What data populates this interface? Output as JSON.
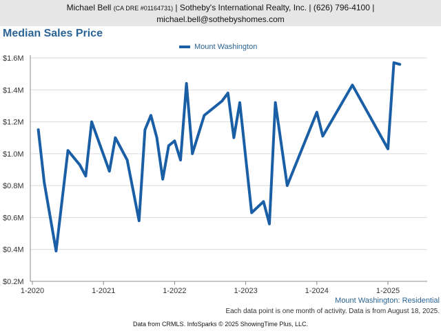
{
  "header": {
    "line1_name": "Michael Bell",
    "line1_license": "(CA DRE #01164731)",
    "line1_rest": "| Sotheby's International Realty, Inc. | (626) 796-4100 |",
    "line2": "michael.bell@sothebyshomes.com"
  },
  "caption": {
    "series_label": "Mount Washington: Residential",
    "note": "Each data point is one month of activity. Data is from August 18, 2025."
  },
  "footer": {
    "text": "Data from CRMLS. InfoSparks © 2025 ShowingTime Plus, LLC."
  },
  "colors": {
    "line": "#1a5fa6",
    "title": "#2a6496"
  },
  "chart_data": {
    "type": "line",
    "title": "Median Sales Price",
    "legend_position": "top-center",
    "grid": true,
    "ylim": [
      0.2,
      1.6
    ],
    "y_ticks": [
      {
        "value": 0.2,
        "label": "$0.2M"
      },
      {
        "value": 0.4,
        "label": "$0.4M"
      },
      {
        "value": 0.6,
        "label": "$0.6M"
      },
      {
        "value": 0.8,
        "label": "$0.8M"
      },
      {
        "value": 1.0,
        "label": "$1.0M"
      },
      {
        "value": 1.2,
        "label": "$1.2M"
      },
      {
        "value": 1.4,
        "label": "$1.4M"
      },
      {
        "value": 1.6,
        "label": "$1.6M"
      }
    ],
    "x_ticks": [
      "1-2020",
      "1-2021",
      "1-2022",
      "1-2023",
      "1-2024",
      "1-2025"
    ],
    "series": [
      {
        "name": "Mount Washington",
        "points": [
          {
            "x": "2020-02",
            "y": 1.15
          },
          {
            "x": "2020-03",
            "y": 0.82
          },
          {
            "x": "2020-05",
            "y": 0.39
          },
          {
            "x": "2020-07",
            "y": 1.02
          },
          {
            "x": "2020-09",
            "y": 0.93
          },
          {
            "x": "2020-10",
            "y": 0.86
          },
          {
            "x": "2020-11",
            "y": 1.2
          },
          {
            "x": "2021-02",
            "y": 0.89
          },
          {
            "x": "2021-03",
            "y": 1.1
          },
          {
            "x": "2021-05",
            "y": 0.96
          },
          {
            "x": "2021-07",
            "y": 0.58
          },
          {
            "x": "2021-08",
            "y": 1.15
          },
          {
            "x": "2021-09",
            "y": 1.24
          },
          {
            "x": "2021-10",
            "y": 1.1
          },
          {
            "x": "2021-11",
            "y": 0.84
          },
          {
            "x": "2021-12",
            "y": 1.05
          },
          {
            "x": "2022-01",
            "y": 1.08
          },
          {
            "x": "2022-02",
            "y": 0.96
          },
          {
            "x": "2022-03",
            "y": 1.44
          },
          {
            "x": "2022-04",
            "y": 1.0
          },
          {
            "x": "2022-06",
            "y": 1.24
          },
          {
            "x": "2022-09",
            "y": 1.33
          },
          {
            "x": "2022-10",
            "y": 1.38
          },
          {
            "x": "2022-11",
            "y": 1.1
          },
          {
            "x": "2022-12",
            "y": 1.32
          },
          {
            "x": "2023-02",
            "y": 0.63
          },
          {
            "x": "2023-04",
            "y": 0.7
          },
          {
            "x": "2023-05",
            "y": 0.56
          },
          {
            "x": "2023-06",
            "y": 1.32
          },
          {
            "x": "2023-08",
            "y": 0.8
          },
          {
            "x": "2024-01",
            "y": 1.26
          },
          {
            "x": "2024-02",
            "y": 1.11
          },
          {
            "x": "2024-07",
            "y": 1.43
          },
          {
            "x": "2025-01",
            "y": 1.03
          },
          {
            "x": "2025-02",
            "y": 1.57
          },
          {
            "x": "2025-03",
            "y": 1.56
          }
        ]
      }
    ]
  }
}
